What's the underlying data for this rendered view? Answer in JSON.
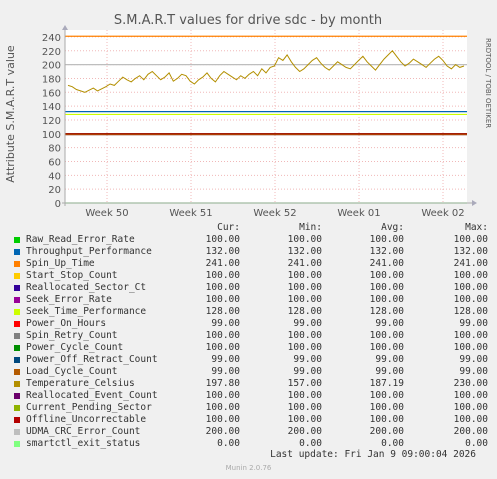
{
  "chart_data": {
    "type": "line",
    "title": "S.M.A.R.T values for drive sdc - by month",
    "ylabel": "Attribute S.M.A.R.T value",
    "ylim": [
      0,
      250
    ],
    "yticks": [
      0,
      20,
      40,
      60,
      80,
      100,
      120,
      140,
      160,
      180,
      200,
      220,
      240
    ],
    "xticks": [
      "Week 50",
      "Week 51",
      "Week 52",
      "Week 01",
      "Week 02"
    ],
    "grid": true,
    "side_label": "RRDTOOL / TOBI OETIKER",
    "columns": [
      "Cur:",
      "Min:",
      "Avg:",
      "Max:"
    ],
    "series": [
      {
        "name": "Raw_Read_Error_Rate",
        "color": "#00cc00",
        "cur": "100.00",
        "min": "100.00",
        "avg": "100.00",
        "max": "100.00",
        "value": 100
      },
      {
        "name": "Throughput_Performance",
        "color": "#0066b3",
        "cur": "132.00",
        "min": "132.00",
        "avg": "132.00",
        "max": "132.00",
        "value": 132
      },
      {
        "name": "Spin_Up_Time",
        "color": "#ff8000",
        "cur": "241.00",
        "min": "241.00",
        "avg": "241.00",
        "max": "241.00",
        "value": 241
      },
      {
        "name": "Start_Stop_Count",
        "color": "#ffcc00",
        "cur": "100.00",
        "min": "100.00",
        "avg": "100.00",
        "max": "100.00",
        "value": 100
      },
      {
        "name": "Reallocated_Sector_Ct",
        "color": "#330099",
        "cur": "100.00",
        "min": "100.00",
        "avg": "100.00",
        "max": "100.00",
        "value": 100
      },
      {
        "name": "Seek_Error_Rate",
        "color": "#990099",
        "cur": "100.00",
        "min": "100.00",
        "avg": "100.00",
        "max": "100.00",
        "value": 100
      },
      {
        "name": "Seek_Time_Performance",
        "color": "#ccff00",
        "cur": "128.00",
        "min": "128.00",
        "avg": "128.00",
        "max": "128.00",
        "value": 128
      },
      {
        "name": "Power_On_Hours",
        "color": "#ff0000",
        "cur": "99.00",
        "min": "99.00",
        "avg": "99.00",
        "max": "99.00",
        "value": 99
      },
      {
        "name": "Spin_Retry_Count",
        "color": "#808080",
        "cur": "100.00",
        "min": "100.00",
        "avg": "100.00",
        "max": "100.00",
        "value": 100
      },
      {
        "name": "Power_Cycle_Count",
        "color": "#008f00",
        "cur": "100.00",
        "min": "100.00",
        "avg": "100.00",
        "max": "100.00",
        "value": 100
      },
      {
        "name": "Power_Off_Retract_Count",
        "color": "#00487d",
        "cur": "99.00",
        "min": "99.00",
        "avg": "99.00",
        "max": "99.00",
        "value": 99
      },
      {
        "name": "Load_Cycle_Count",
        "color": "#b35a00",
        "cur": "99.00",
        "min": "99.00",
        "avg": "99.00",
        "max": "99.00",
        "value": 99
      },
      {
        "name": "Temperature_Celsius",
        "color": "#b38f00",
        "cur": "197.80",
        "min": "157.00",
        "avg": "187.19",
        "max": "230.00"
      },
      {
        "name": "Reallocated_Event_Count",
        "color": "#6b006b",
        "cur": "100.00",
        "min": "100.00",
        "avg": "100.00",
        "max": "100.00",
        "value": 100
      },
      {
        "name": "Current_Pending_Sector",
        "color": "#8fb300",
        "cur": "100.00",
        "min": "100.00",
        "avg": "100.00",
        "max": "100.00",
        "value": 100
      },
      {
        "name": "Offline_Uncorrectable",
        "color": "#b30000",
        "cur": "100.00",
        "min": "100.00",
        "avg": "100.00",
        "max": "100.00",
        "value": 100
      },
      {
        "name": "UDMA_CRC_Error_Count",
        "color": "#bebebe",
        "cur": "200.00",
        "min": "200.00",
        "avg": "200.00",
        "max": "200.00",
        "value": 200
      },
      {
        "name": "smartctl_exit_status",
        "color": "#80ff80",
        "cur": "0.00",
        "min": "0.00",
        "avg": "0.00",
        "max": "0.00",
        "value": 0
      }
    ],
    "temperature_series": [
      170,
      168,
      164,
      162,
      160,
      163,
      166,
      162,
      165,
      168,
      172,
      170,
      176,
      182,
      178,
      175,
      180,
      184,
      178,
      186,
      190,
      184,
      178,
      182,
      188,
      176,
      180,
      186,
      184,
      176,
      172,
      178,
      182,
      188,
      180,
      175,
      184,
      190,
      186,
      182,
      178,
      184,
      180,
      186,
      190,
      184,
      194,
      188,
      196,
      198,
      210,
      206,
      214,
      204,
      196,
      190,
      194,
      200,
      206,
      210,
      202,
      196,
      192,
      198,
      204,
      200,
      196,
      194,
      200,
      206,
      212,
      204,
      198,
      192,
      200,
      208,
      214,
      220,
      212,
      204,
      198,
      202,
      208,
      204,
      200,
      196,
      202,
      208,
      212,
      206,
      198,
      194,
      200,
      196,
      198
    ]
  },
  "footer": {
    "last_update": "Last update: Fri Jan  9 09:00:04 2026",
    "munin": "Munin 2.0.76"
  }
}
